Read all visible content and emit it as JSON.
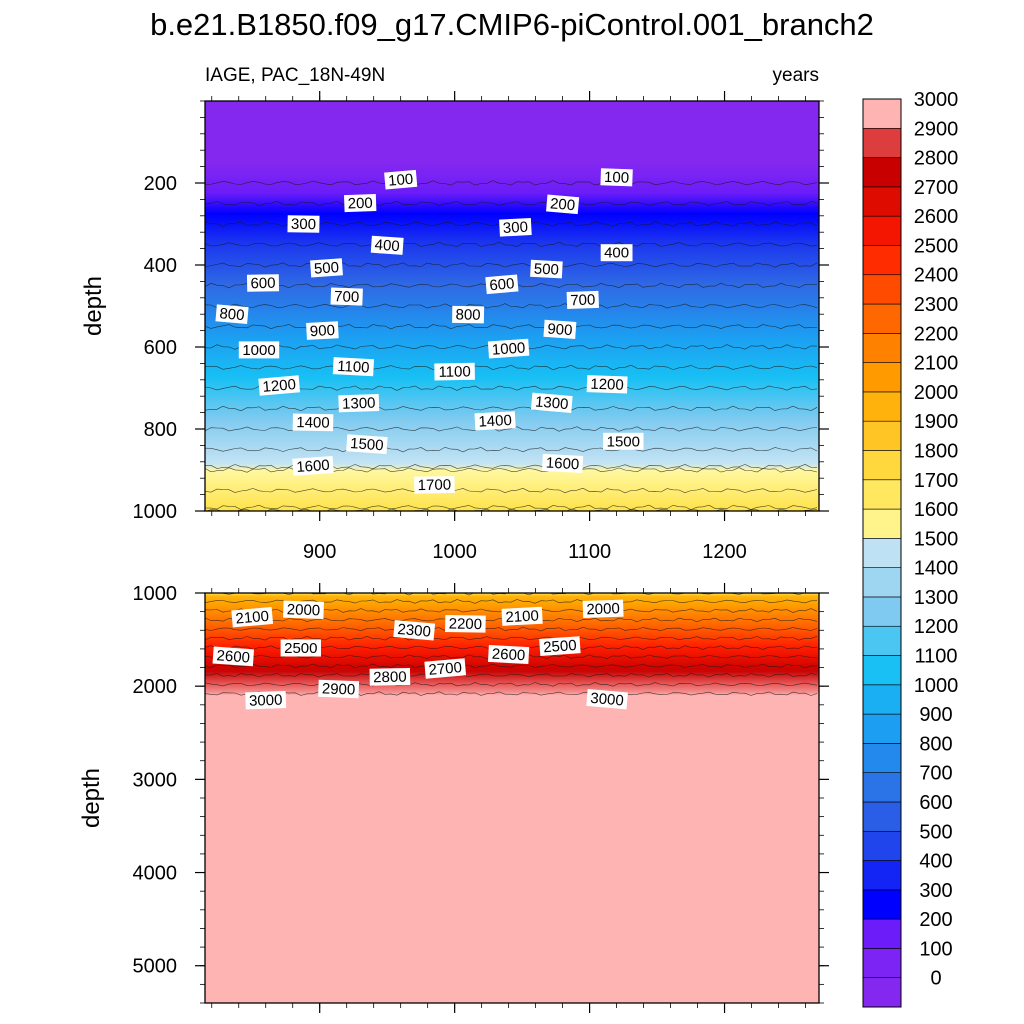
{
  "chart_data": {
    "type": "heatmap",
    "title": "b.e21.B1850.f09_g17.CMIP6-piControl.001_branch2",
    "subtitle_left": "IAGE, PAC_18N-49N",
    "subtitle_right": "years",
    "ylabel": "depth",
    "xlim": [
      815,
      1270
    ],
    "x_ticks": [
      900,
      1000,
      1100,
      1200
    ],
    "panels": [
      {
        "id": "upper",
        "ylim": [
          0,
          1000
        ],
        "y_ticks": [
          200,
          400,
          600,
          800,
          1000
        ],
        "contour_labels": [
          {
            "text": "100",
            "x": 960,
            "y": 192
          },
          {
            "text": "100",
            "x": 1120,
            "y": 186
          },
          {
            "text": "200",
            "x": 930,
            "y": 249
          },
          {
            "text": "200",
            "x": 1080,
            "y": 252
          },
          {
            "text": "300",
            "x": 888,
            "y": 300
          },
          {
            "text": "300",
            "x": 1045,
            "y": 308
          },
          {
            "text": "400",
            "x": 950,
            "y": 352
          },
          {
            "text": "400",
            "x": 1120,
            "y": 370
          },
          {
            "text": "500",
            "x": 905,
            "y": 407
          },
          {
            "text": "500",
            "x": 1068,
            "y": 410
          },
          {
            "text": "600",
            "x": 858,
            "y": 444
          },
          {
            "text": "600",
            "x": 1035,
            "y": 447
          },
          {
            "text": "700",
            "x": 920,
            "y": 477
          },
          {
            "text": "700",
            "x": 1095,
            "y": 485
          },
          {
            "text": "800",
            "x": 835,
            "y": 520
          },
          {
            "text": "800",
            "x": 1010,
            "y": 521
          },
          {
            "text": "900",
            "x": 902,
            "y": 560
          },
          {
            "text": "900",
            "x": 1078,
            "y": 557
          },
          {
            "text": "1000",
            "x": 855,
            "y": 607
          },
          {
            "text": "1000",
            "x": 1040,
            "y": 604
          },
          {
            "text": "1100",
            "x": 925,
            "y": 648
          },
          {
            "text": "1100",
            "x": 1000,
            "y": 660
          },
          {
            "text": "1200",
            "x": 870,
            "y": 694
          },
          {
            "text": "1200",
            "x": 1113,
            "y": 691
          },
          {
            "text": "1300",
            "x": 929,
            "y": 737
          },
          {
            "text": "1300",
            "x": 1072,
            "y": 736
          },
          {
            "text": "1400",
            "x": 895,
            "y": 784
          },
          {
            "text": "1400",
            "x": 1030,
            "y": 780
          },
          {
            "text": "1500",
            "x": 935,
            "y": 837
          },
          {
            "text": "1500",
            "x": 1125,
            "y": 830
          },
          {
            "text": "1600",
            "x": 895,
            "y": 890
          },
          {
            "text": "1600",
            "x": 1080,
            "y": 884
          },
          {
            "text": "1700",
            "x": 985,
            "y": 936
          }
        ]
      },
      {
        "id": "lower",
        "ylim": [
          1000,
          5400
        ],
        "y_ticks": [
          1000,
          2000,
          3000,
          4000,
          5000
        ],
        "contour_labels": [
          {
            "text": "2100",
            "x": 850,
            "y": 1260
          },
          {
            "text": "2000",
            "x": 888,
            "y": 1180
          },
          {
            "text": "2000",
            "x": 1110,
            "y": 1170
          },
          {
            "text": "2300",
            "x": 970,
            "y": 1400
          },
          {
            "text": "2200",
            "x": 1008,
            "y": 1330
          },
          {
            "text": "2100",
            "x": 1050,
            "y": 1250
          },
          {
            "text": "2600",
            "x": 836,
            "y": 1680
          },
          {
            "text": "2500",
            "x": 886,
            "y": 1590
          },
          {
            "text": "2500",
            "x": 1078,
            "y": 1570
          },
          {
            "text": "2600",
            "x": 1040,
            "y": 1660
          },
          {
            "text": "2800",
            "x": 952,
            "y": 1900
          },
          {
            "text": "2700",
            "x": 993,
            "y": 1810
          },
          {
            "text": "2900",
            "x": 914,
            "y": 2030
          },
          {
            "text": "3000",
            "x": 860,
            "y": 2150
          },
          {
            "text": "3000",
            "x": 1113,
            "y": 2140
          }
        ]
      }
    ],
    "colorbar": {
      "levels": [
        0,
        100,
        200,
        300,
        400,
        500,
        600,
        700,
        800,
        900,
        1000,
        1100,
        1200,
        1300,
        1400,
        1500,
        1600,
        1700,
        1800,
        1900,
        2000,
        2100,
        2200,
        2300,
        2400,
        2500,
        2600,
        2700,
        2800,
        2900,
        3000
      ],
      "labels": [
        "0",
        "100",
        "200",
        "300",
        "400",
        "500",
        "600",
        "700",
        "800",
        "900",
        "1000",
        "1100",
        "1200",
        "1300",
        "1400",
        "1500",
        "1600",
        "1700",
        "1800",
        "1900",
        "2000",
        "2100",
        "2200",
        "2300",
        "2400",
        "2500",
        "2600",
        "2700",
        "2800",
        "2900",
        "3000"
      ],
      "stops": [
        {
          "v": 0,
          "c": "#8428f0"
        },
        {
          "v": 150,
          "c": "#6b1cf8"
        },
        {
          "v": 250,
          "c": "#0000ff"
        },
        {
          "v": 400,
          "c": "#1c38ee"
        },
        {
          "v": 600,
          "c": "#2f6ae4"
        },
        {
          "v": 850,
          "c": "#1c9ef2"
        },
        {
          "v": 1050,
          "c": "#18c0f4"
        },
        {
          "v": 1250,
          "c": "#7ecaf0"
        },
        {
          "v": 1475,
          "c": "#c6e4f4"
        },
        {
          "v": 1500,
          "c": "#fff8a0"
        },
        {
          "v": 1700,
          "c": "#ffe24a"
        },
        {
          "v": 2000,
          "c": "#ffa800"
        },
        {
          "v": 2300,
          "c": "#ff5a00"
        },
        {
          "v": 2500,
          "c": "#ff1c00"
        },
        {
          "v": 2750,
          "c": "#c80000"
        },
        {
          "v": 2900,
          "c": "#e85c5c"
        },
        {
          "v": 3050,
          "c": "#ffb4b4"
        }
      ]
    }
  }
}
